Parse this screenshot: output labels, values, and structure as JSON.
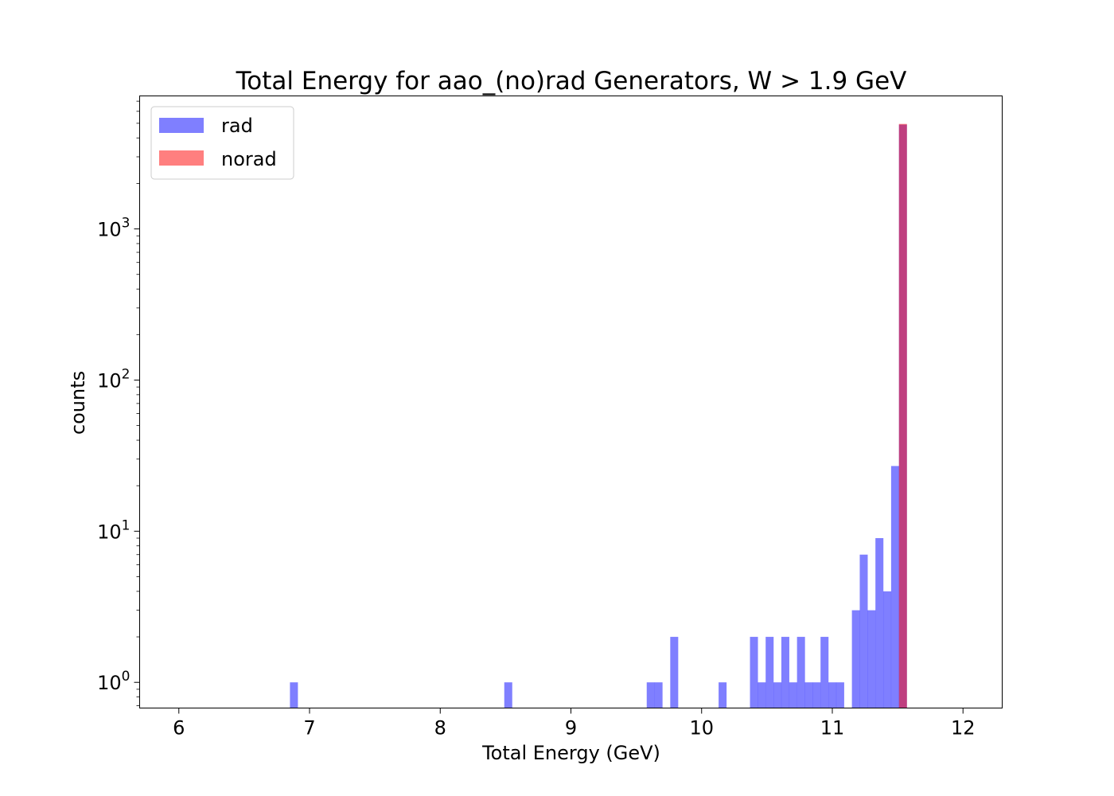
{
  "chart_data": {
    "type": "bar",
    "title": "Total Energy for aao_(no)rad Generators, W > 1.9 GeV",
    "xlabel": "Total Energy (GeV)",
    "ylabel": "counts",
    "xlim": [
      5.7,
      12.3
    ],
    "ylim_log10": [
      -0.17,
      3.88
    ],
    "y_scale": "log",
    "bin_width": 0.061,
    "x_ticks": [
      "6",
      "7",
      "8",
      "9",
      "10",
      "11",
      "12"
    ],
    "x_tick_values": [
      6,
      7,
      8,
      9,
      10,
      11,
      12
    ],
    "y_ticks": [
      {
        "base": "10",
        "exp": "0",
        "value": 1
      },
      {
        "base": "10",
        "exp": "1",
        "value": 10
      },
      {
        "base": "10",
        "exp": "2",
        "value": 100
      },
      {
        "base": "10",
        "exp": "3",
        "value": 1000
      }
    ],
    "legend_position": "upper-left",
    "series": [
      {
        "name": "rad",
        "color": "#0000ff",
        "opacity": 0.5,
        "bins": [
          {
            "x": 6.85,
            "count": 1
          },
          {
            "x": 8.49,
            "count": 1
          },
          {
            "x": 9.58,
            "count": 1
          },
          {
            "x": 9.64,
            "count": 1
          },
          {
            "x": 9.76,
            "count": 2
          },
          {
            "x": 10.13,
            "count": 1
          },
          {
            "x": 10.37,
            "count": 2
          },
          {
            "x": 10.43,
            "count": 1
          },
          {
            "x": 10.49,
            "count": 2
          },
          {
            "x": 10.55,
            "count": 1
          },
          {
            "x": 10.61,
            "count": 2
          },
          {
            "x": 10.67,
            "count": 1
          },
          {
            "x": 10.73,
            "count": 2
          },
          {
            "x": 10.79,
            "count": 1
          },
          {
            "x": 10.85,
            "count": 1
          },
          {
            "x": 10.91,
            "count": 2
          },
          {
            "x": 10.97,
            "count": 1
          },
          {
            "x": 11.03,
            "count": 1
          },
          {
            "x": 11.15,
            "count": 3
          },
          {
            "x": 11.21,
            "count": 7
          },
          {
            "x": 11.27,
            "count": 3
          },
          {
            "x": 11.33,
            "count": 9
          },
          {
            "x": 11.39,
            "count": 4
          },
          {
            "x": 11.45,
            "count": 27
          },
          {
            "x": 11.51,
            "count": 4900
          }
        ]
      },
      {
        "name": "norad",
        "color": "#ff0000",
        "opacity": 0.5,
        "bins": [
          {
            "x": 11.51,
            "count": 4950
          }
        ]
      }
    ]
  }
}
